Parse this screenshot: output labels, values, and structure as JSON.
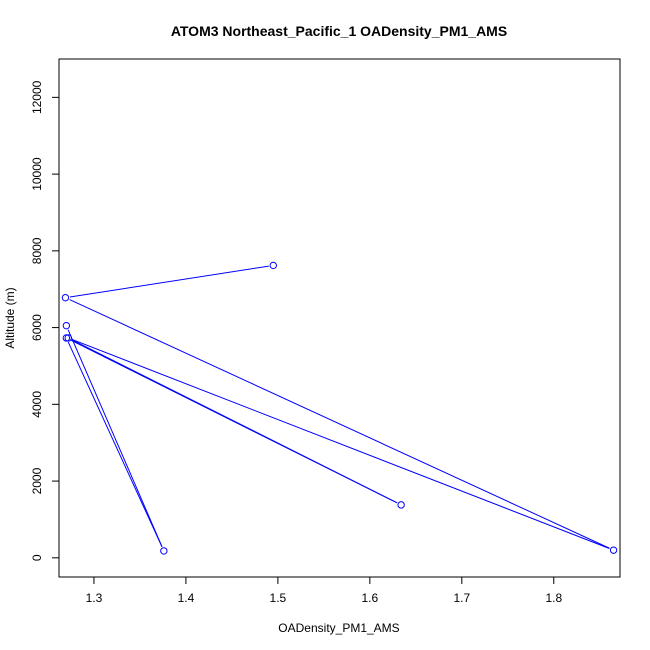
{
  "chart_data": {
    "type": "line",
    "title": "ATOM3 Northeast_Pacific_1 OADensity_PM1_AMS",
    "xlabel": "OADensity_PM1_AMS",
    "ylabel": "Altitude (m)",
    "xlim": [
      1.262,
      1.872
    ],
    "ylim": [
      -500,
      13000
    ],
    "x_ticks": [
      1.3,
      1.4,
      1.5,
      1.6,
      1.7,
      1.8
    ],
    "x_tick_labels": [
      "1.3",
      "1.4",
      "1.5",
      "1.6",
      "1.7",
      "1.8"
    ],
    "y_ticks": [
      0,
      2000,
      4000,
      6000,
      8000,
      10000,
      12000
    ],
    "y_tick_labels": [
      "0",
      "2000",
      "4000",
      "6000",
      "8000",
      "10000",
      "12000"
    ],
    "grid": false,
    "color": "#0000ff",
    "series": [
      {
        "x": [
          1.495,
          1.269,
          1.865,
          1.272,
          1.634,
          1.27,
          1.376,
          1.27
        ],
        "y": [
          7620,
          6780,
          200,
          5730,
          1380,
          5730,
          180,
          6050
        ]
      }
    ]
  }
}
